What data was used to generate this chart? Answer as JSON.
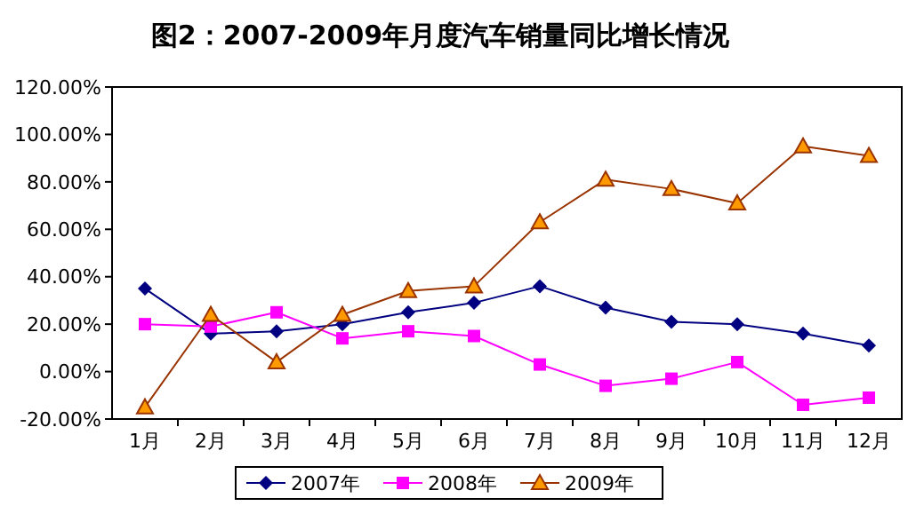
{
  "chart_data": {
    "type": "line",
    "title": "图2：2007-2009年月度汽车销量同比增长情况",
    "categories": [
      "1月",
      "2月",
      "3月",
      "4月",
      "5月",
      "6月",
      "7月",
      "8月",
      "9月",
      "10月",
      "11月",
      "12月"
    ],
    "series": [
      {
        "name": "2007年",
        "color": "#000080",
        "marker": "diamond",
        "values": [
          35,
          16,
          17,
          20,
          25,
          29,
          36,
          27,
          21,
          20,
          16,
          11
        ]
      },
      {
        "name": "2008年",
        "color": "#ff00ff",
        "marker": "square",
        "values": [
          20,
          19,
          25,
          14,
          17,
          15,
          3,
          -6,
          -3,
          4,
          -14,
          -11
        ]
      },
      {
        "name": "2009年",
        "color": "#993300",
        "marker": "triangle",
        "values": [
          -15,
          24,
          4,
          24,
          34,
          36,
          63,
          81,
          77,
          71,
          95,
          91
        ]
      }
    ],
    "ylim": [
      -20,
      120
    ],
    "yticks": [
      {
        "value": -20,
        "label": "-20.00%"
      },
      {
        "value": 0,
        "label": "0.00%"
      },
      {
        "value": 20,
        "label": "20.00%"
      },
      {
        "value": 40,
        "label": "40.00%"
      },
      {
        "value": 60,
        "label": "60.00%"
      },
      {
        "value": 80,
        "label": "80.00%"
      },
      {
        "value": 100,
        "label": "100.00%"
      },
      {
        "value": 120,
        "label": "120.00%"
      }
    ],
    "grid": false,
    "legend": "bottom",
    "line_style": "solid"
  }
}
